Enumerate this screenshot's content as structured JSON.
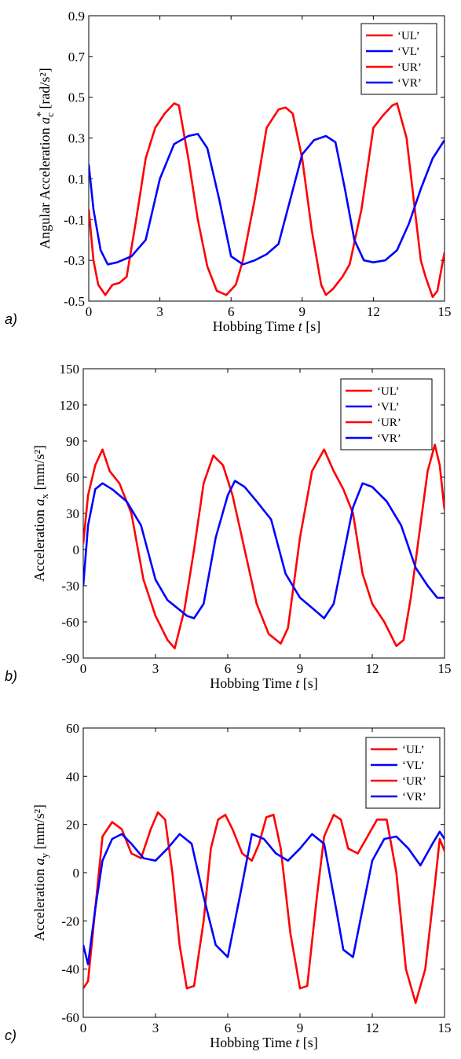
{
  "chart_data": [
    {
      "type": "line",
      "panel_label": "a)",
      "xlabel": "Hobbing Time",
      "xlabel_var": "t",
      "xlabel_unit": "[s]",
      "ylabel": "Angular Acceleration",
      "ylabel_var": "a",
      "ylabel_sup": "*",
      "ylabel_sub": "c",
      "ylabel_unit": "[rad/s²]",
      "xlim": [
        0,
        15
      ],
      "ylim": [
        -0.5,
        0.9
      ],
      "xticks": [
        0,
        3,
        6,
        9,
        12,
        15
      ],
      "yticks": [
        -0.5,
        -0.3,
        -0.1,
        0.1,
        0.3,
        0.5,
        0.7,
        0.9
      ],
      "ytick_labels": [
        "-0.5",
        "-0.3",
        "-0.1",
        "0.1",
        "0.3",
        "0.5",
        "0.7",
        "0.9"
      ],
      "legend_position": "top-right",
      "series": [
        {
          "name": "‘UL’",
          "color": "#ff0000",
          "x": [
            0,
            0.2,
            0.4,
            0.7,
            1.0,
            1.3,
            1.6,
            2.0,
            2.4,
            2.8,
            3.2,
            3.6,
            3.8,
            4.2,
            4.6,
            5.0,
            5.4,
            5.8,
            6.2,
            6.5,
            7.0,
            7.5,
            8.0,
            8.3,
            8.6,
            9.0,
            9.4,
            9.8,
            10.0,
            10.3,
            10.7,
            11.0,
            11.5,
            12.0,
            12.4,
            12.8,
            13.0,
            13.4,
            13.7,
            14.0,
            14.2,
            14.5,
            14.7,
            15.0
          ],
          "y": [
            -0.05,
            -0.3,
            -0.42,
            -0.47,
            -0.42,
            -0.41,
            -0.38,
            -0.1,
            0.2,
            0.35,
            0.42,
            0.47,
            0.46,
            0.2,
            -0.1,
            -0.33,
            -0.45,
            -0.47,
            -0.42,
            -0.3,
            0.0,
            0.35,
            0.44,
            0.45,
            0.42,
            0.2,
            -0.15,
            -0.42,
            -0.47,
            -0.44,
            -0.38,
            -0.32,
            -0.05,
            0.35,
            0.41,
            0.46,
            0.47,
            0.3,
            0.0,
            -0.3,
            -0.38,
            -0.48,
            -0.45,
            -0.26
          ]
        },
        {
          "name": "‘VL’",
          "color": "#0000ff",
          "x": [
            0,
            0.2,
            0.5,
            0.8,
            1.2,
            1.8,
            2.4,
            3.0,
            3.6,
            4.2,
            4.6,
            5.0,
            5.5,
            6.0,
            6.5,
            7.0,
            7.5,
            8.0,
            8.5,
            9.0,
            9.5,
            10.0,
            10.4,
            10.8,
            11.2,
            11.6,
            12.0,
            12.5,
            13.0,
            13.5,
            14.0,
            14.5,
            15.0
          ],
          "y": [
            0.17,
            -0.05,
            -0.25,
            -0.32,
            -0.31,
            -0.28,
            -0.2,
            0.1,
            0.27,
            0.31,
            0.32,
            0.25,
            0.0,
            -0.28,
            -0.32,
            -0.3,
            -0.27,
            -0.22,
            0.0,
            0.22,
            0.29,
            0.31,
            0.28,
            0.05,
            -0.2,
            -0.3,
            -0.31,
            -0.3,
            -0.25,
            -0.12,
            0.05,
            0.2,
            0.29
          ]
        },
        {
          "name": "‘UR’",
          "color": "#ff0000",
          "x": [],
          "y": []
        },
        {
          "name": "‘VR’",
          "color": "#0000ff",
          "x": [],
          "y": []
        }
      ]
    },
    {
      "type": "line",
      "panel_label": "b)",
      "xlabel": "Hobbing Time",
      "xlabel_var": "t",
      "xlabel_unit": "[s]",
      "ylabel": "Acceleration",
      "ylabel_var": "a",
      "ylabel_sup": "",
      "ylabel_sub": "x",
      "ylabel_unit": "[mm/s²]",
      "xlim": [
        0,
        15
      ],
      "ylim": [
        -90,
        150
      ],
      "xticks": [
        0,
        3,
        6,
        9,
        12,
        15
      ],
      "yticks": [
        -90,
        -60,
        -30,
        0,
        30,
        60,
        90,
        120,
        150
      ],
      "ytick_labels": [
        "-90",
        "-60",
        "-30",
        "0",
        "30",
        "60",
        "90",
        "120",
        "150"
      ],
      "legend_position": "top-right",
      "series": [
        {
          "name": "‘UL’",
          "color": "#ff0000",
          "x": [
            0,
            0.2,
            0.5,
            0.8,
            1.1,
            1.5,
            2.0,
            2.5,
            3.0,
            3.5,
            3.8,
            4.2,
            4.6,
            5.0,
            5.4,
            5.8,
            6.2,
            6.7,
            7.2,
            7.7,
            8.2,
            8.5,
            9.0,
            9.5,
            10.0,
            10.4,
            10.8,
            11.2,
            11.6,
            12.0,
            12.5,
            13.0,
            13.3,
            13.6,
            14.0,
            14.3,
            14.6,
            14.8,
            15.0
          ],
          "y": [
            5,
            45,
            70,
            83,
            65,
            55,
            30,
            -25,
            -55,
            -75,
            -82,
            -50,
            0,
            55,
            78,
            70,
            45,
            0,
            -45,
            -70,
            -78,
            -65,
            10,
            65,
            83,
            65,
            50,
            30,
            -20,
            -45,
            -60,
            -80,
            -75,
            -40,
            20,
            65,
            87,
            70,
            33
          ]
        },
        {
          "name": "‘VL’",
          "color": "#0000ff",
          "x": [
            0,
            0.2,
            0.5,
            0.8,
            1.2,
            1.8,
            2.4,
            3.0,
            3.5,
            4.0,
            4.3,
            4.6,
            5.0,
            5.5,
            6.0,
            6.3,
            6.7,
            7.2,
            7.8,
            8.4,
            9.0,
            9.6,
            10.0,
            10.4,
            10.8,
            11.2,
            11.6,
            12.0,
            12.6,
            13.2,
            13.8,
            14.3,
            14.7,
            15.0
          ],
          "y": [
            -30,
            20,
            50,
            55,
            50,
            40,
            20,
            -25,
            -42,
            -50,
            -55,
            -57,
            -45,
            10,
            45,
            57,
            52,
            40,
            25,
            -20,
            -40,
            -50,
            -57,
            -45,
            -5,
            35,
            55,
            52,
            40,
            20,
            -15,
            -30,
            -40,
            -40
          ]
        },
        {
          "name": "‘UR’",
          "color": "#ff0000",
          "x": [],
          "y": []
        },
        {
          "name": "‘VR’",
          "color": "#0000ff",
          "x": [],
          "y": []
        }
      ]
    },
    {
      "type": "line",
      "panel_label": "c)",
      "xlabel": "Hobbing Time",
      "xlabel_var": "t",
      "xlabel_unit": "[s]",
      "ylabel": "Acceleration",
      "ylabel_var": "a",
      "ylabel_sup": "",
      "ylabel_sub": "y",
      "ylabel_unit": "[mm/s²]",
      "xlim": [
        0,
        15
      ],
      "ylim": [
        -60,
        60
      ],
      "xticks": [
        0,
        3,
        6,
        9,
        12,
        15
      ],
      "yticks": [
        -60,
        -40,
        -20,
        0,
        20,
        40,
        60
      ],
      "ytick_labels": [
        "-60",
        "-40",
        "-20",
        "0",
        "20",
        "40",
        "60"
      ],
      "legend_position": "top-right",
      "series": [
        {
          "name": "‘UL’",
          "color": "#ff0000",
          "x": [
            0,
            0.2,
            0.5,
            0.8,
            1.2,
            1.6,
            2.0,
            2.4,
            2.8,
            3.1,
            3.4,
            3.7,
            4.0,
            4.3,
            4.6,
            5.0,
            5.3,
            5.6,
            5.9,
            6.2,
            6.6,
            7.0,
            7.3,
            7.6,
            7.9,
            8.2,
            8.6,
            9.0,
            9.3,
            9.7,
            10.0,
            10.4,
            10.7,
            11.0,
            11.4,
            11.8,
            12.2,
            12.6,
            13.0,
            13.4,
            13.8,
            14.2,
            14.6,
            14.8,
            15.0
          ],
          "y": [
            -48,
            -45,
            -15,
            15,
            21,
            18,
            8,
            6,
            18,
            25,
            22,
            0,
            -30,
            -48,
            -47,
            -20,
            10,
            22,
            24,
            18,
            8,
            5,
            12,
            23,
            24,
            10,
            -25,
            -48,
            -47,
            -10,
            15,
            24,
            22,
            10,
            8,
            15,
            22,
            22,
            0,
            -40,
            -54,
            -40,
            -5,
            14,
            9
          ]
        },
        {
          "name": "‘VL’",
          "color": "#0000ff",
          "x": [
            0,
            0.2,
            0.5,
            0.8,
            1.2,
            1.6,
            2.0,
            2.5,
            3.0,
            3.5,
            4.0,
            4.5,
            5.0,
            5.5,
            6.0,
            6.5,
            7.0,
            7.5,
            8.0,
            8.5,
            9.0,
            9.5,
            10.0,
            10.5,
            10.8,
            11.2,
            11.6,
            12.0,
            12.5,
            13.0,
            13.5,
            14.0,
            14.5,
            14.8,
            15.0
          ],
          "y": [
            -30,
            -38,
            -15,
            5,
            14,
            16,
            12,
            6,
            5,
            10,
            16,
            12,
            -10,
            -30,
            -35,
            -10,
            16,
            14,
            8,
            5,
            10,
            16,
            12,
            -15,
            -32,
            -35,
            -15,
            5,
            14,
            15,
            10,
            3,
            12,
            17,
            14
          ]
        },
        {
          "name": "‘UR’",
          "color": "#ff0000",
          "x": [],
          "y": []
        },
        {
          "name": "‘VR’",
          "color": "#0000ff",
          "x": [],
          "y": []
        }
      ]
    }
  ]
}
